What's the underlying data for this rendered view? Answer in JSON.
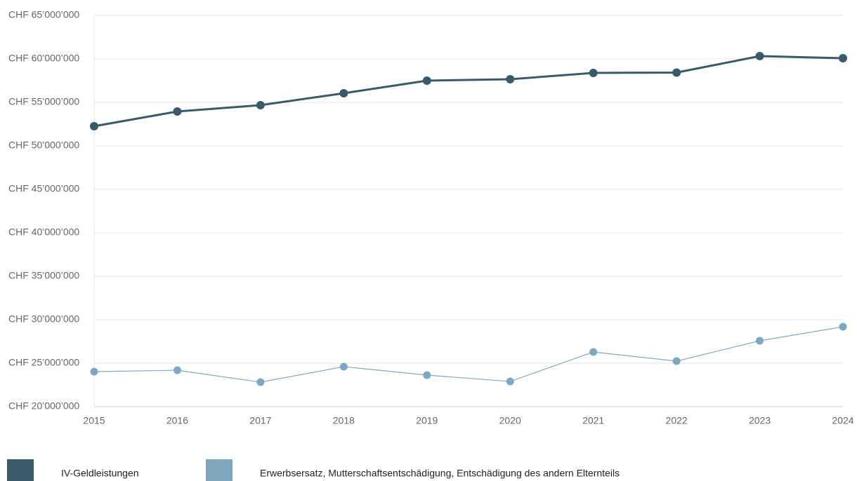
{
  "chart_data": {
    "type": "line",
    "categories": [
      "2015",
      "2016",
      "2017",
      "2018",
      "2019",
      "2020",
      "2021",
      "2022",
      "2023",
      "2024"
    ],
    "series": [
      {
        "name": "IV-Geldleistungen",
        "color": "#3b5a69",
        "values": [
          52260000,
          53950000,
          54680000,
          56050000,
          57500000,
          57660000,
          58390000,
          58430000,
          60320000,
          60080000
        ]
      },
      {
        "name": "Erwerbsersatz, Mutterschaftsentschädigung, Entschädigung des andern Elternteils",
        "color": "#7fa8bf",
        "values": [
          24030000,
          24190000,
          22820000,
          24600000,
          23630000,
          22900000,
          26290000,
          25240000,
          27580000,
          29190000
        ]
      }
    ],
    "ylim": [
      20000000,
      65000000
    ],
    "yticks": [
      {
        "value": 20000000,
        "label": "CHF 20’000’000"
      },
      {
        "value": 25000000,
        "label": "CHF 25’000’000"
      },
      {
        "value": 30000000,
        "label": "CHF 30’000’000"
      },
      {
        "value": 35000000,
        "label": "CHF 35’000’000"
      },
      {
        "value": 40000000,
        "label": "CHF 40’000’000"
      },
      {
        "value": 45000000,
        "label": "CHF 45’000’000"
      },
      {
        "value": 50000000,
        "label": "CHF 50’000’000"
      },
      {
        "value": 55000000,
        "label": "CHF 55’000’000"
      },
      {
        "value": 60000000,
        "label": "CHF 60’000’000"
      },
      {
        "value": 65000000,
        "label": "CHF 65’000’000"
      }
    ],
    "grid": true
  }
}
